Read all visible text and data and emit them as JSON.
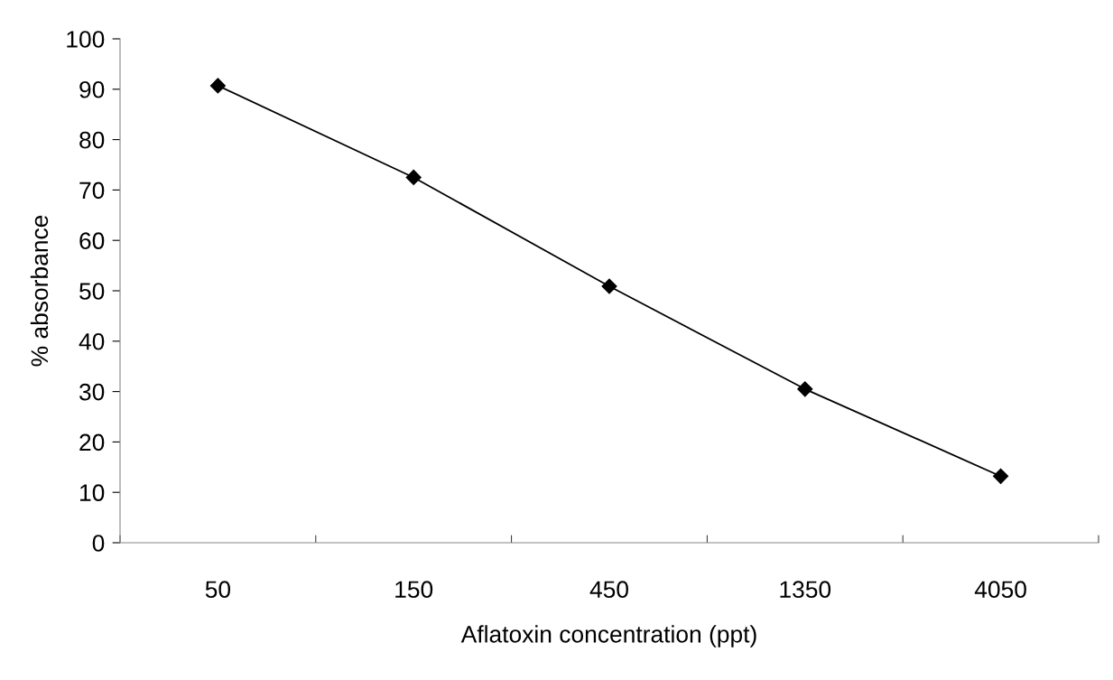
{
  "chart_data": {
    "type": "line",
    "xlabel": "Aflatoxin concentration (ppt)",
    "ylabel": "% absorbance",
    "categories": [
      "50",
      "150",
      "450",
      "1350",
      "4050"
    ],
    "series": [
      {
        "color": "#000000",
        "values": [
          90.7,
          72.5,
          50.9,
          30.5,
          13.2
        ]
      }
    ],
    "ylim": [
      0,
      100
    ],
    "yticks": [
      0,
      10,
      20,
      30,
      40,
      50,
      60,
      70,
      80,
      90,
      100
    ],
    "marker": "diamond",
    "line_style": "solid",
    "grid": false,
    "legend": false
  }
}
